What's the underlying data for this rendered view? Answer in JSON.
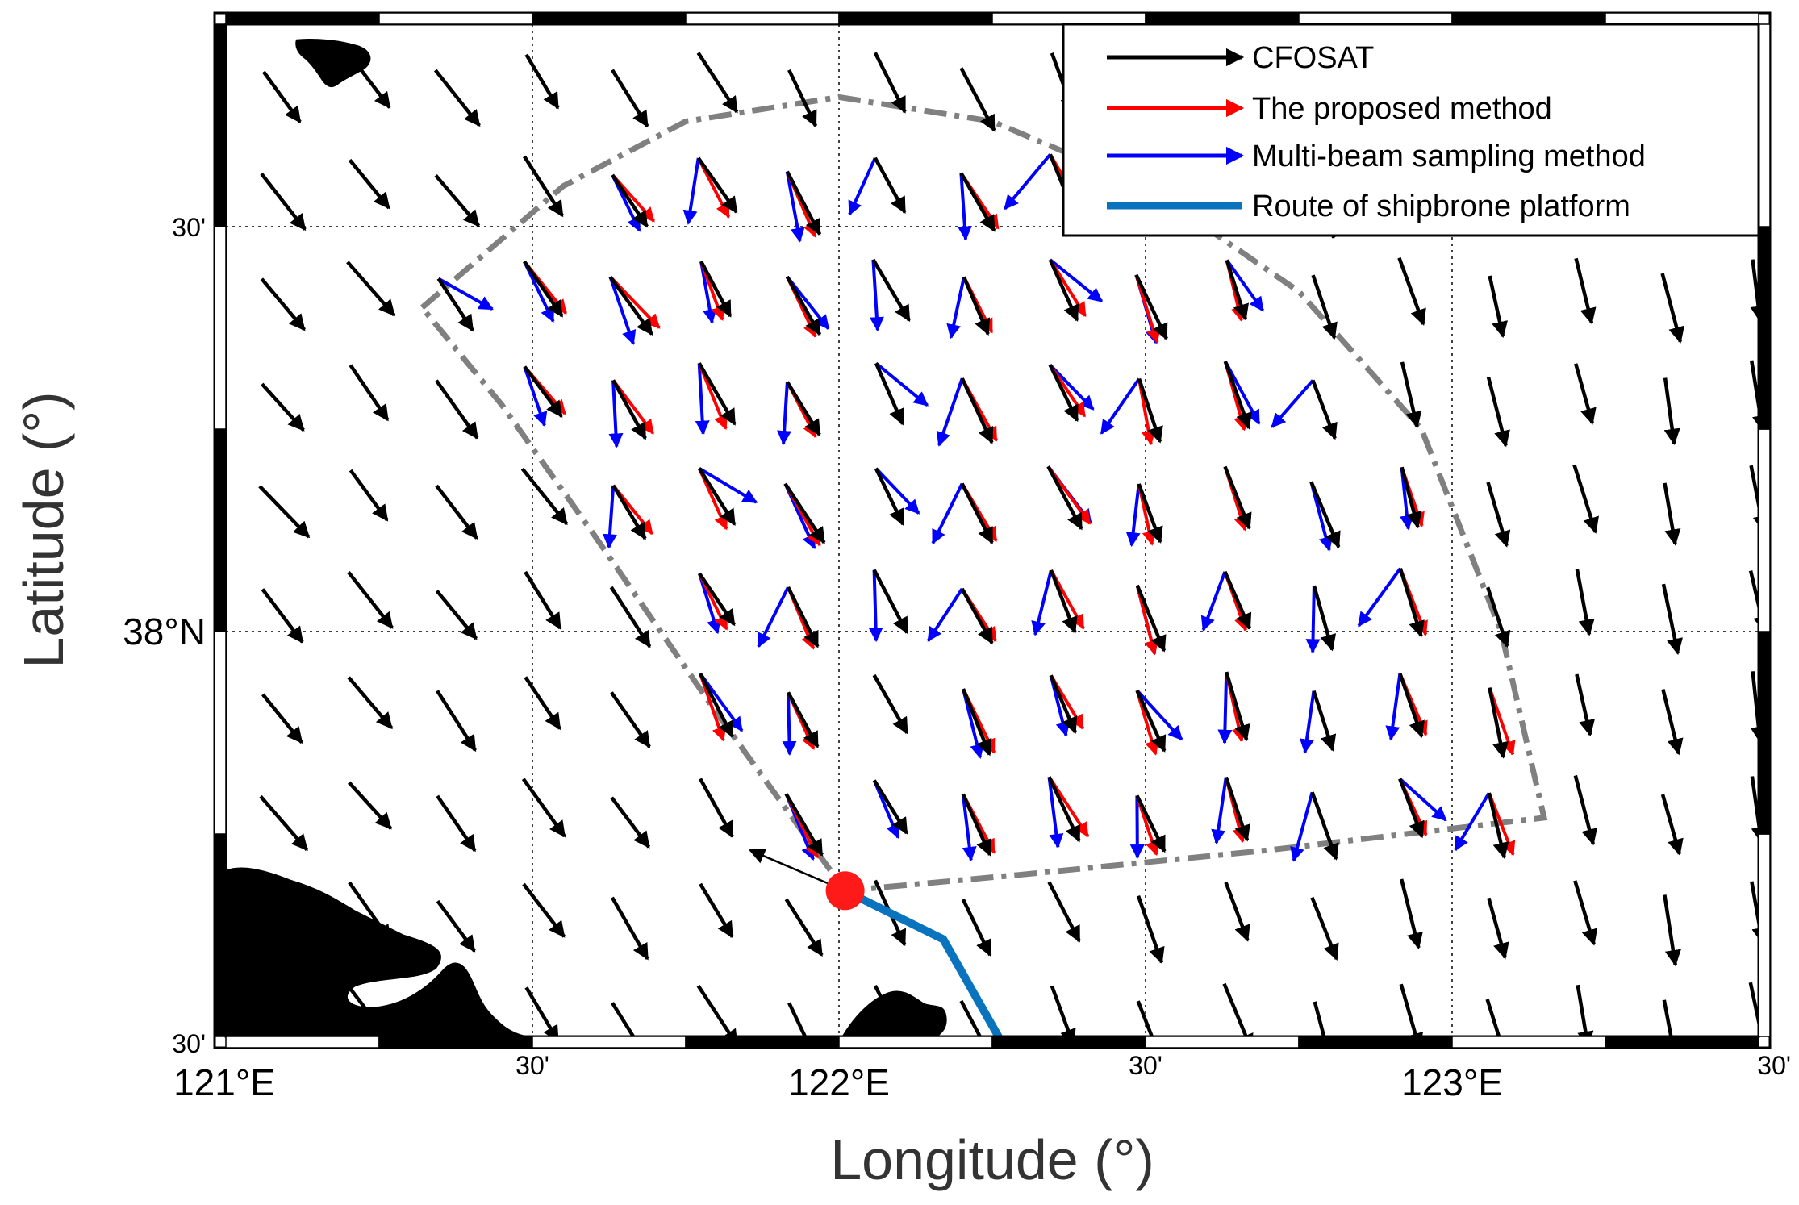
{
  "figure": {
    "xlabel": "Longitude (°)",
    "ylabel": "Latitude (°)"
  },
  "axes": {
    "lon_range": [
      121.0,
      123.5
    ],
    "lat_range": [
      37.5,
      38.75
    ],
    "grid": "dotted",
    "frame": "black-white checkered border",
    "x_ticks": [
      {
        "lon": 121.0,
        "label": "121°E",
        "major": true
      },
      {
        "lon": 121.5,
        "label": "30'",
        "major": false
      },
      {
        "lon": 122.0,
        "label": "122°E",
        "major": true
      },
      {
        "lon": 122.5,
        "label": "30'",
        "major": false
      },
      {
        "lon": 123.0,
        "label": "123°E",
        "major": true
      },
      {
        "lon": 123.5,
        "label": "30'",
        "major": false
      }
    ],
    "y_ticks": [
      {
        "lat": 37.5,
        "label": "30'",
        "major": false
      },
      {
        "lat": 38.0,
        "label": "38°N",
        "major": true
      },
      {
        "lat": 38.5,
        "label": "30'",
        "major": false
      }
    ]
  },
  "legend": {
    "placement": "top-right",
    "items": [
      {
        "label": "CFOSAT",
        "color": "#000000",
        "kind": "arrow"
      },
      {
        "label": "The proposed method",
        "color": "#ff0000",
        "kind": "arrow"
      },
      {
        "label": "Multi-beam sampling method",
        "color": "#0000ff",
        "kind": "arrow"
      },
      {
        "label": "Route of shipbrone platform",
        "color": "#0a73bd",
        "kind": "line"
      }
    ]
  },
  "colors": {
    "land": "#5ecb98",
    "cfosat": "#000000",
    "proposed": "#ff0000",
    "multibeam": "#0000ff",
    "route": "#0a73bd",
    "boundary": "#808080",
    "ship": "#ff1a1a"
  },
  "chart_data": {
    "type": "vector-field",
    "units": {
      "x": "degrees E",
      "y": "degrees N"
    },
    "ship_position": {
      "lon": 122.01,
      "lat": 37.68
    },
    "ship_heading_vector": {
      "dlon": -0.155,
      "dlat": 0.05
    },
    "route": [
      [
        122.01,
        37.68
      ],
      [
        122.17,
        37.62
      ],
      [
        122.26,
        37.5
      ]
    ],
    "boundary": [
      [
        121.32,
        38.4
      ],
      [
        121.55,
        38.55
      ],
      [
        121.75,
        38.63
      ],
      [
        122.0,
        38.66
      ],
      [
        122.25,
        38.63
      ],
      [
        122.5,
        38.55
      ],
      [
        122.75,
        38.42
      ],
      [
        122.95,
        38.25
      ],
      [
        123.08,
        38.0
      ],
      [
        123.15,
        37.77
      ],
      [
        122.7,
        37.73
      ],
      [
        122.3,
        37.7
      ],
      [
        122.01,
        37.68
      ],
      [
        121.8,
        37.9
      ],
      [
        121.6,
        38.12
      ],
      [
        121.45,
        38.28
      ],
      [
        121.32,
        38.4
      ]
    ],
    "wind_field": {
      "description": "CFOSAT wind vectors on a regular grid; direction rotates from south-east in the west to south in the east",
      "lon_start": 121.08,
      "lon_step": 0.142,
      "lon_count": 18,
      "lat_start": 37.52,
      "lat_step": 0.128,
      "lat_count": 10,
      "vector_length_deg": 0.082,
      "direction_west_deg": 140,
      "direction_east_deg": 100
    },
    "comparison_arrows_note": "Red (proposed) and blue (multi-beam) vectors are drawn at grid points inside the boundary region"
  }
}
